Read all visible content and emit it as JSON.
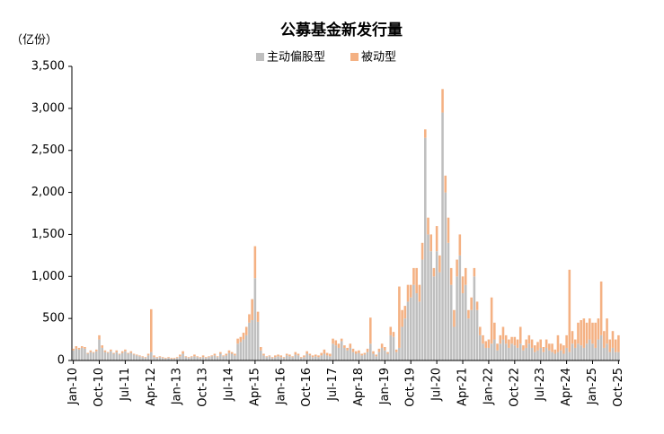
{
  "chart_data": {
    "type": "stacked_bar",
    "title": "公募基金新发行量",
    "y_unit": "（亿份）",
    "categories": [
      "Jan-10",
      null,
      null,
      null,
      null,
      null,
      null,
      null,
      null,
      "Oct-10",
      null,
      null,
      null,
      null,
      null,
      null,
      null,
      null,
      "Jul-11",
      null,
      null,
      null,
      null,
      null,
      null,
      null,
      null,
      "Apr-12",
      null,
      null,
      null,
      null,
      null,
      null,
      null,
      null,
      "Jan-13",
      null,
      null,
      null,
      null,
      null,
      null,
      null,
      null,
      "Oct-13",
      null,
      null,
      null,
      null,
      null,
      null,
      null,
      null,
      "Jul-14",
      null,
      null,
      null,
      null,
      null,
      null,
      null,
      null,
      "Apr-15",
      null,
      null,
      null,
      null,
      null,
      null,
      null,
      null,
      "Jan-16",
      null,
      null,
      null,
      null,
      null,
      null,
      null,
      null,
      "Oct-16",
      null,
      null,
      null,
      null,
      null,
      null,
      null,
      null,
      "Jul-17",
      null,
      null,
      null,
      null,
      null,
      null,
      null,
      null,
      "Apr-18",
      null,
      null,
      null,
      null,
      null,
      null,
      null,
      null,
      "Jan-19",
      null,
      null,
      null,
      null,
      null,
      null,
      null,
      null,
      "Oct-19",
      null,
      null,
      null,
      null,
      null,
      null,
      null,
      null,
      "Jul-20",
      null,
      null,
      null,
      null,
      null,
      null,
      null,
      null,
      "Apr-21",
      null,
      null,
      null,
      null,
      null,
      null,
      null,
      null,
      "Jan-22",
      null,
      null,
      null,
      null,
      null,
      null,
      null,
      null,
      "Oct-22",
      null,
      null,
      null,
      null,
      null,
      null,
      null,
      null,
      "Jul-23",
      null,
      null,
      null,
      null,
      null,
      null,
      null,
      null,
      "Apr-24",
      null,
      null,
      null,
      null,
      null,
      null,
      null,
      null,
      "Jan-25",
      null,
      null,
      null,
      null,
      null,
      null,
      null,
      null,
      "Oct-25"
    ],
    "series": [
      {
        "name": "主动偏股型",
        "color": "#bfbfbf",
        "values": [
          120,
          140,
          130,
          150,
          140,
          80,
          100,
          90,
          110,
          250,
          150,
          100,
          90,
          110,
          80,
          100,
          70,
          90,
          110,
          80,
          90,
          70,
          60,
          50,
          40,
          30,
          60,
          100,
          40,
          30,
          40,
          30,
          20,
          30,
          20,
          20,
          30,
          50,
          80,
          40,
          30,
          40,
          50,
          40,
          30,
          40,
          30,
          40,
          50,
          60,
          40,
          80,
          50,
          60,
          90,
          80,
          60,
          200,
          220,
          250,
          300,
          450,
          480,
          980,
          460,
          120,
          60,
          40,
          50,
          30,
          40,
          50,
          40,
          30,
          60,
          50,
          40,
          70,
          60,
          30,
          40,
          80,
          60,
          40,
          50,
          40,
          60,
          80,
          60,
          50,
          200,
          180,
          150,
          230,
          150,
          120,
          150,
          100,
          80,
          90,
          60,
          70,
          100,
          200,
          80,
          50,
          100,
          150,
          120,
          80,
          300,
          280,
          100,
          150,
          400,
          500,
          700,
          750,
          900,
          800,
          700,
          1200,
          2650,
          1500,
          1300,
          1000,
          1300,
          1050,
          2950,
          2000,
          1400,
          900,
          400,
          1000,
          1250,
          800,
          900,
          500,
          600,
          1000,
          600,
          300,
          200,
          150,
          150,
          200,
          250,
          120,
          200,
          250,
          200,
          150,
          200,
          180,
          150,
          200,
          120,
          150,
          200,
          150,
          100,
          120,
          150,
          100,
          150,
          120,
          100,
          80,
          100,
          120,
          80,
          150,
          100,
          200,
          150,
          200,
          180,
          150,
          200,
          250,
          200,
          150,
          250,
          300,
          150,
          200,
          100,
          150,
          100,
          100
        ]
      },
      {
        "name": "被动型",
        "color": "#f4b183",
        "values": [
          20,
          30,
          20,
          20,
          20,
          10,
          20,
          10,
          20,
          50,
          30,
          20,
          10,
          20,
          10,
          20,
          10,
          20,
          20,
          10,
          20,
          10,
          10,
          10,
          10,
          10,
          20,
          510,
          20,
          10,
          10,
          10,
          10,
          10,
          10,
          10,
          10,
          20,
          30,
          10,
          10,
          10,
          20,
          10,
          10,
          20,
          10,
          10,
          10,
          20,
          10,
          20,
          10,
          20,
          30,
          20,
          20,
          60,
          60,
          80,
          100,
          100,
          250,
          380,
          120,
          40,
          20,
          10,
          10,
          10,
          20,
          20,
          20,
          10,
          20,
          20,
          10,
          30,
          20,
          10,
          20,
          30,
          20,
          20,
          20,
          20,
          30,
          50,
          30,
          30,
          60,
          60,
          50,
          30,
          30,
          30,
          50,
          40,
          30,
          30,
          20,
          20,
          40,
          310,
          30,
          20,
          40,
          50,
          40,
          20,
          100,
          60,
          30,
          730,
          200,
          150,
          200,
          150,
          200,
          300,
          200,
          200,
          100,
          200,
          200,
          100,
          300,
          200,
          280,
          200,
          300,
          200,
          200,
          200,
          250,
          200,
          200,
          100,
          150,
          100,
          100,
          100,
          100,
          80,
          100,
          550,
          200,
          80,
          100,
          150,
          100,
          100,
          80,
          100,
          100,
          200,
          60,
          100,
          100,
          100,
          80,
          100,
          100,
          60,
          100,
          80,
          100,
          50,
          200,
          80,
          100,
          150,
          980,
          150,
          100,
          250,
          300,
          350,
          250,
          250,
          250,
          300,
          250,
          640,
          200,
          300,
          150,
          200,
          150,
          200
        ]
      }
    ],
    "ylim": [
      0,
      3500
    ],
    "yticks": [
      0,
      500,
      {
        "value": 1000,
        "label": "1,000"
      },
      {
        "value": 1500,
        "label": "1,500"
      },
      {
        "value": 2000,
        "label": "2,000"
      },
      {
        "value": 2500,
        "label": "2,500"
      },
      {
        "value": 3000,
        "label": "3,000"
      },
      {
        "value": 3500,
        "label": "3,500"
      }
    ],
    "grid": false
  }
}
